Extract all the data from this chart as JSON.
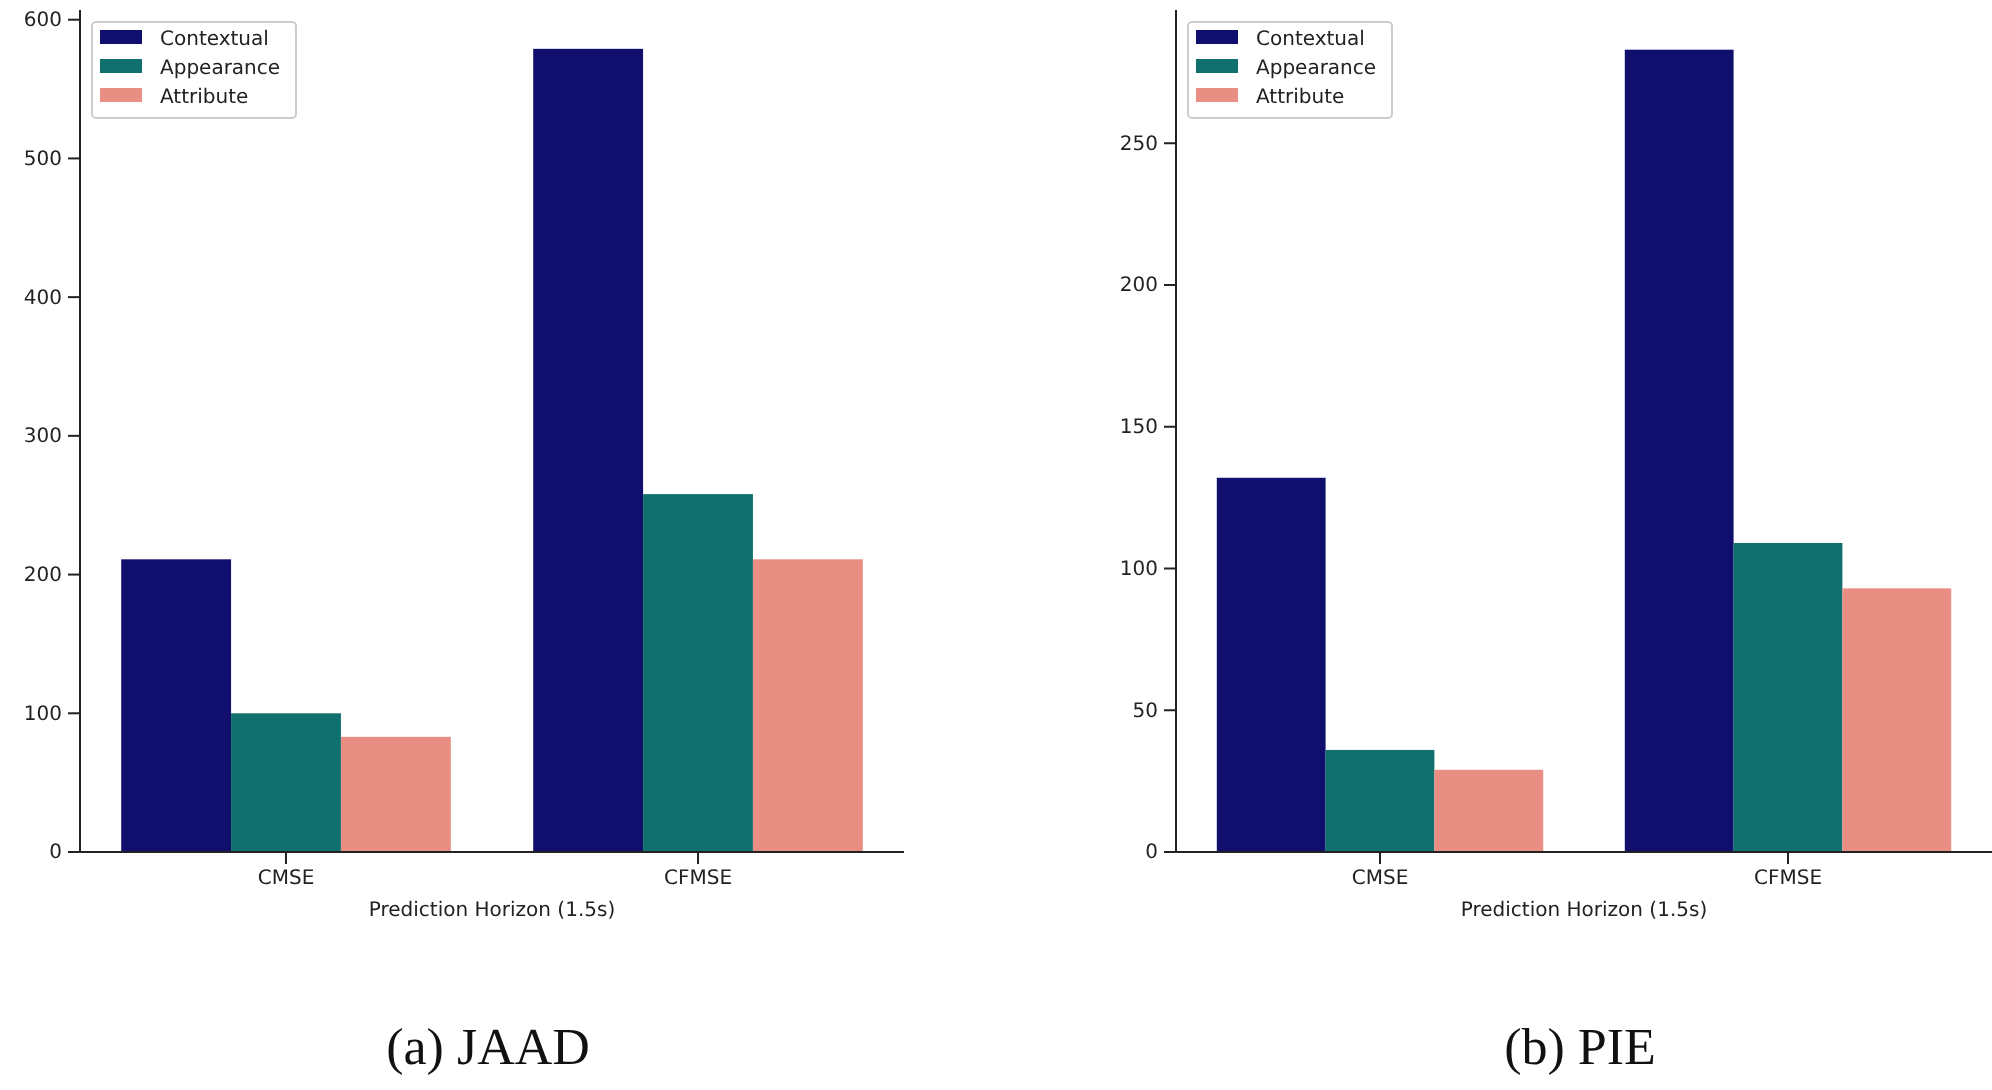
{
  "chart_data": [
    {
      "type": "bar",
      "title": "(a) JAAD",
      "xlabel": "Prediction Horizon (1.5s)",
      "categories": [
        "CMSE",
        "CFMSE"
      ],
      "series": [
        {
          "name": "Contextual",
          "color": "#100f6e",
          "values": [
            211,
            579
          ]
        },
        {
          "name": "Appearance",
          "color": "#10706d",
          "values": [
            100,
            258
          ]
        },
        {
          "name": "Attribute",
          "color": "#e88e82",
          "values": [
            83,
            211
          ]
        }
      ],
      "ylim": [
        0,
        607
      ],
      "yticks": [
        0,
        100,
        200,
        300,
        400,
        500,
        600
      ],
      "grid": false,
      "legend": "top left"
    },
    {
      "type": "bar",
      "title": "(b) PIE",
      "xlabel": "Prediction Horizon (1.5s)",
      "categories": [
        "CMSE",
        "CFMSE"
      ],
      "series": [
        {
          "name": "Contextual",
          "color": "#100f6e",
          "values": [
            132,
            283
          ]
        },
        {
          "name": "Appearance",
          "color": "#10706d",
          "values": [
            36,
            109
          ]
        },
        {
          "name": "Attribute",
          "color": "#e88e82",
          "values": [
            29,
            93
          ]
        }
      ],
      "ylim": [
        0,
        297
      ],
      "yticks": [
        0,
        50,
        100,
        150,
        200,
        250
      ],
      "grid": false,
      "legend": "top left"
    }
  ]
}
